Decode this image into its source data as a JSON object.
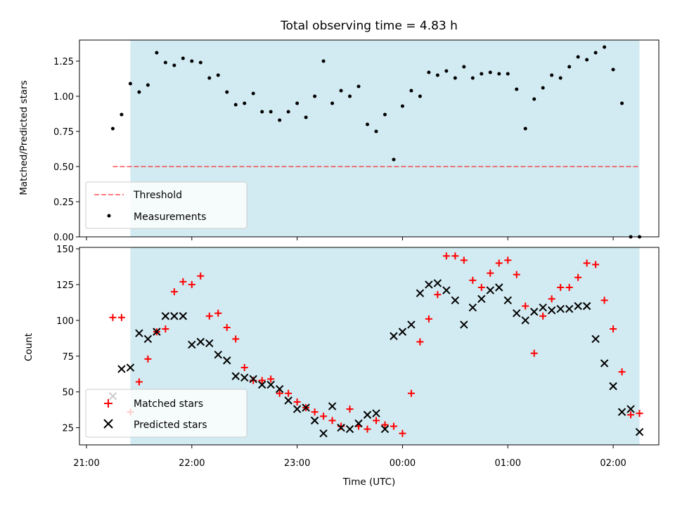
{
  "colors": {
    "observing_span": "#add8e6",
    "threshold": "#ff0000",
    "measurements": "#000000",
    "matched": "#ff0000",
    "predicted": "#000000"
  },
  "chart_data": [
    {
      "type": "scatter",
      "title": "Total observing time = 4.83 h",
      "xlabel": "",
      "ylabel": "Matched/Predicted stars",
      "xlim": [
        "20:56",
        "02:26"
      ],
      "ylim": [
        0,
        1.4
      ],
      "yticks": [
        "0.00",
        "0.25",
        "0.50",
        "0.75",
        "1.00",
        "1.25"
      ],
      "ytick_values": [
        0,
        0.25,
        0.5,
        0.75,
        1.0,
        1.25
      ],
      "shaded_span": [
        "21:25",
        "02:15"
      ],
      "grid": false,
      "legend": "lower-left",
      "threshold": {
        "name": "Threshold",
        "x": [
          "21:15",
          "02:15"
        ],
        "y": 0.5
      },
      "series": [
        {
          "name": "Measurements",
          "x": [
            "21:15",
            "21:20",
            "21:25",
            "21:30",
            "21:35",
            "21:40",
            "21:45",
            "21:50",
            "21:55",
            "22:00",
            "22:05",
            "22:10",
            "22:15",
            "22:20",
            "22:25",
            "22:30",
            "22:35",
            "22:40",
            "22:45",
            "22:50",
            "22:55",
            "23:00",
            "23:05",
            "23:10",
            "23:15",
            "23:20",
            "23:25",
            "23:30",
            "23:35",
            "23:40",
            "23:45",
            "23:50",
            "23:55",
            "00:00",
            "00:05",
            "00:10",
            "00:15",
            "00:20",
            "00:25",
            "00:30",
            "00:35",
            "00:40",
            "00:45",
            "00:50",
            "00:55",
            "01:00",
            "01:05",
            "01:10",
            "01:15",
            "01:20",
            "01:25",
            "01:30",
            "01:35",
            "01:40",
            "01:45",
            "01:50",
            "01:55",
            "02:00",
            "02:05",
            "02:10",
            "02:15"
          ],
          "y": [
            0.77,
            0.87,
            1.09,
            1.03,
            1.08,
            1.31,
            1.24,
            1.22,
            1.27,
            1.25,
            1.24,
            1.13,
            1.15,
            1.03,
            0.94,
            0.95,
            1.02,
            0.89,
            0.89,
            0.83,
            0.89,
            0.95,
            0.85,
            1.0,
            1.25,
            0.95,
            1.04,
            1.0,
            1.07,
            0.8,
            0.75,
            0.87,
            0.55,
            0.93,
            1.04,
            1.0,
            1.17,
            1.15,
            1.18,
            1.13,
            1.21,
            1.13,
            1.16,
            1.17,
            1.16,
            1.16,
            1.05,
            0.77,
            0.98,
            1.06,
            1.15,
            1.13,
            1.21,
            1.28,
            1.26,
            1.31,
            1.35,
            1.19,
            0.95,
            0.0,
            0.0
          ]
        }
      ]
    },
    {
      "type": "scatter",
      "title": "",
      "xlabel": "Time (UTC)",
      "ylabel": "Count",
      "xlim": [
        "20:56",
        "02:26"
      ],
      "ylim": [
        13,
        151
      ],
      "yticks": [
        "25",
        "50",
        "75",
        "100",
        "125",
        "150"
      ],
      "ytick_values": [
        25,
        50,
        75,
        100,
        125,
        150
      ],
      "xticks": [
        "21:00",
        "22:00",
        "23:00",
        "00:00",
        "01:00",
        "02:00"
      ],
      "xtick_values": [
        "21:00",
        "22:00",
        "23:00",
        "00:00",
        "01:00",
        "02:00"
      ],
      "shaded_span": [
        "21:25",
        "02:15"
      ],
      "grid": false,
      "legend": "lower-left",
      "series": [
        {
          "name": "Matched stars",
          "marker": "plus",
          "x": [
            "21:15",
            "21:20",
            "21:25",
            "21:30",
            "21:35",
            "21:40",
            "21:45",
            "21:50",
            "21:55",
            "22:00",
            "22:05",
            "22:10",
            "22:15",
            "22:20",
            "22:25",
            "22:30",
            "22:35",
            "22:40",
            "22:45",
            "22:50",
            "22:55",
            "23:00",
            "23:05",
            "23:10",
            "23:15",
            "23:20",
            "23:25",
            "23:30",
            "23:35",
            "23:40",
            "23:45",
            "23:50",
            "23:55",
            "00:00",
            "00:05",
            "00:10",
            "00:15",
            "00:20",
            "00:25",
            "00:30",
            "00:35",
            "00:40",
            "00:45",
            "00:50",
            "00:55",
            "01:00",
            "01:05",
            "01:10",
            "01:15",
            "01:20",
            "01:25",
            "01:30",
            "01:35",
            "01:40",
            "01:45",
            "01:50",
            "01:55",
            "02:00",
            "02:05",
            "02:10",
            "02:15"
          ],
          "y": [
            102,
            102,
            36,
            57,
            73,
            92,
            94,
            120,
            127,
            125,
            131,
            103,
            105,
            95,
            87,
            67,
            58,
            58,
            59,
            49,
            49,
            43,
            39,
            36,
            33,
            30,
            26,
            38,
            26,
            24,
            30,
            27,
            26,
            21,
            49,
            85,
            101,
            118,
            145,
            145,
            142,
            128,
            123,
            133,
            140,
            142,
            132,
            110,
            77,
            103,
            115,
            123,
            123,
            130,
            140,
            139,
            114,
            94,
            64,
            34,
            35
          ]
        },
        {
          "name": "Predicted stars",
          "marker": "x",
          "x": [
            "21:15",
            "21:20",
            "21:25",
            "21:30",
            "21:35",
            "21:40",
            "21:45",
            "21:50",
            "21:55",
            "22:00",
            "22:05",
            "22:10",
            "22:15",
            "22:20",
            "22:25",
            "22:30",
            "22:35",
            "22:40",
            "22:45",
            "22:50",
            "22:55",
            "23:00",
            "23:05",
            "23:10",
            "23:15",
            "23:20",
            "23:25",
            "23:30",
            "23:35",
            "23:40",
            "23:45",
            "23:50",
            "23:55",
            "00:00",
            "00:05",
            "00:10",
            "00:15",
            "00:20",
            "00:25",
            "00:30",
            "00:35",
            "00:40",
            "00:45",
            "00:50",
            "00:55",
            "01:00",
            "01:05",
            "01:10",
            "01:15",
            "01:20",
            "01:25",
            "01:30",
            "01:35",
            "01:40",
            "01:45",
            "01:50",
            "01:55",
            "02:00",
            "02:05",
            "02:10",
            "02:15"
          ],
          "y": [
            47,
            66,
            67,
            91,
            87,
            92,
            103,
            103,
            103,
            83,
            85,
            84,
            76,
            72,
            61,
            60,
            59,
            55,
            55,
            52,
            44,
            38,
            39,
            30,
            21,
            40,
            25,
            24,
            28,
            34,
            35,
            24,
            89,
            92,
            97,
            119,
            125,
            126,
            121,
            114,
            97,
            109,
            115,
            121,
            123,
            114,
            105,
            100,
            106,
            109,
            107,
            108,
            108,
            110,
            110,
            87,
            70,
            54,
            36,
            38,
            22
          ]
        }
      ]
    }
  ]
}
